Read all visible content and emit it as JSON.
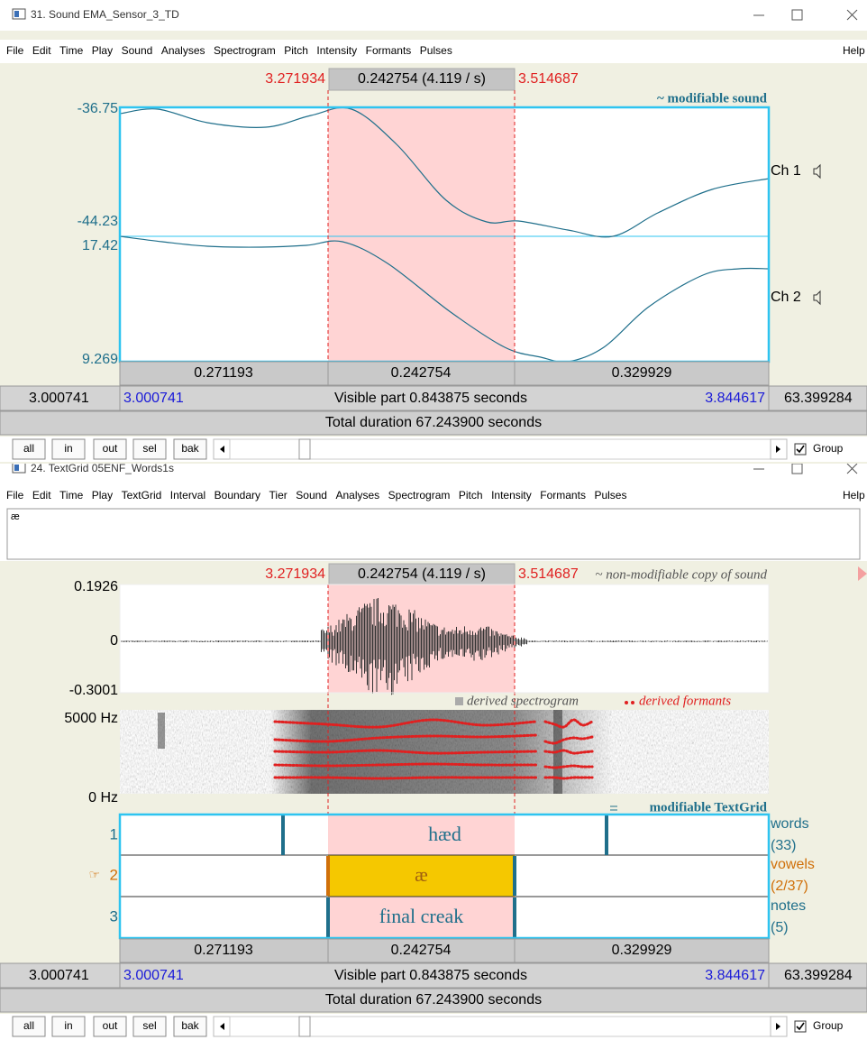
{
  "window1": {
    "title": "31. Sound EMA_Sensor_3_TD",
    "menu": [
      "File",
      "Edit",
      "Time",
      "Play",
      "Sound",
      "Analyses",
      "Spectrogram",
      "Pitch",
      "Intensity",
      "Formants",
      "Pulses"
    ],
    "help": "Help",
    "selection": {
      "start": "3.271934",
      "duration": "0.242754 (4.119 / s)",
      "end": "3.514687"
    },
    "sound": {
      "label": "~ modifiable sound",
      "channels": [
        {
          "name": "Ch 1",
          "max": "-36.75",
          "min": "-44.23"
        },
        {
          "name": "Ch 2",
          "max": "17.42",
          "min": "9.269"
        }
      ]
    },
    "durations": [
      "0.271193",
      "0.242754",
      "0.329929"
    ],
    "visible": {
      "start": "3.000741",
      "window_start": "3.000741",
      "text": "Visible part 0.843875 seconds",
      "window_end": "3.844617",
      "end": "63.399284"
    },
    "total": "Total duration 67.243900 seconds",
    "buttons": [
      "all",
      "in",
      "out",
      "sel",
      "bak"
    ],
    "group": "Group"
  },
  "window2": {
    "title": "24. TextGrid 05ENF_Words1s",
    "menu": [
      "File",
      "Edit",
      "Time",
      "Play",
      "TextGrid",
      "Interval",
      "Boundary",
      "Tier",
      "Sound",
      "Analyses",
      "Spectrogram",
      "Pitch",
      "Intensity",
      "Formants",
      "Pulses"
    ],
    "help": "Help",
    "text_field": "æ",
    "selection": {
      "start": "3.271934",
      "duration": "0.242754 (4.119 / s)",
      "end": "3.514687"
    },
    "sound": {
      "label": "~ non-modifiable copy of sound",
      "max": "0.1926",
      "zero": "0",
      "min": "-0.3001"
    },
    "spectrogram": {
      "max": "5000 Hz",
      "min": "0 Hz",
      "label": "derived spectrogram",
      "formants_label": "derived formants"
    },
    "textgrid_label": "modifiable TextGrid",
    "pointer": "☞",
    "tiers": [
      {
        "number": "1",
        "name": "words",
        "count": "(33)",
        "intervals": [
          "hæd"
        ]
      },
      {
        "number": "2",
        "name": "vowels",
        "count": "(2/37)",
        "intervals": [
          "æ"
        ]
      },
      {
        "number": "3",
        "name": "notes",
        "count": "(5)",
        "intervals": [
          "final creak"
        ]
      }
    ],
    "durations": [
      "0.271193",
      "0.242754",
      "0.329929"
    ],
    "visible": {
      "start": "3.000741",
      "window_start": "3.000741",
      "text": "Visible part 0.843875 seconds",
      "window_end": "3.844617",
      "end": "63.399284"
    },
    "total": "Total duration 67.243900 seconds",
    "buttons": [
      "all",
      "in",
      "out",
      "sel",
      "bak"
    ],
    "group": "Group"
  }
}
